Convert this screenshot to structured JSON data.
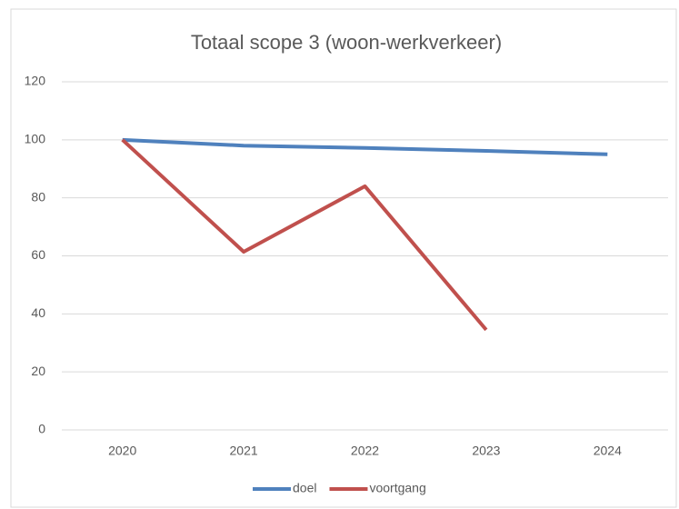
{
  "chart_data": {
    "type": "line",
    "title": "Totaal scope 3 (woon-werkverkeer)",
    "categories": [
      "2020",
      "2021",
      "2022",
      "2023",
      "2024"
    ],
    "series": [
      {
        "name": "doel",
        "color": "#4f81bd",
        "values": [
          100,
          98,
          97.2,
          96.2,
          95
        ]
      },
      {
        "name": "voortgang",
        "color": "#c0504d",
        "values": [
          100,
          61.4,
          84,
          34.5,
          null
        ]
      }
    ],
    "ylim": [
      0,
      120
    ],
    "yticks": [
      0,
      20,
      40,
      60,
      80,
      100,
      120
    ],
    "grid": true,
    "legend": "bottom"
  }
}
